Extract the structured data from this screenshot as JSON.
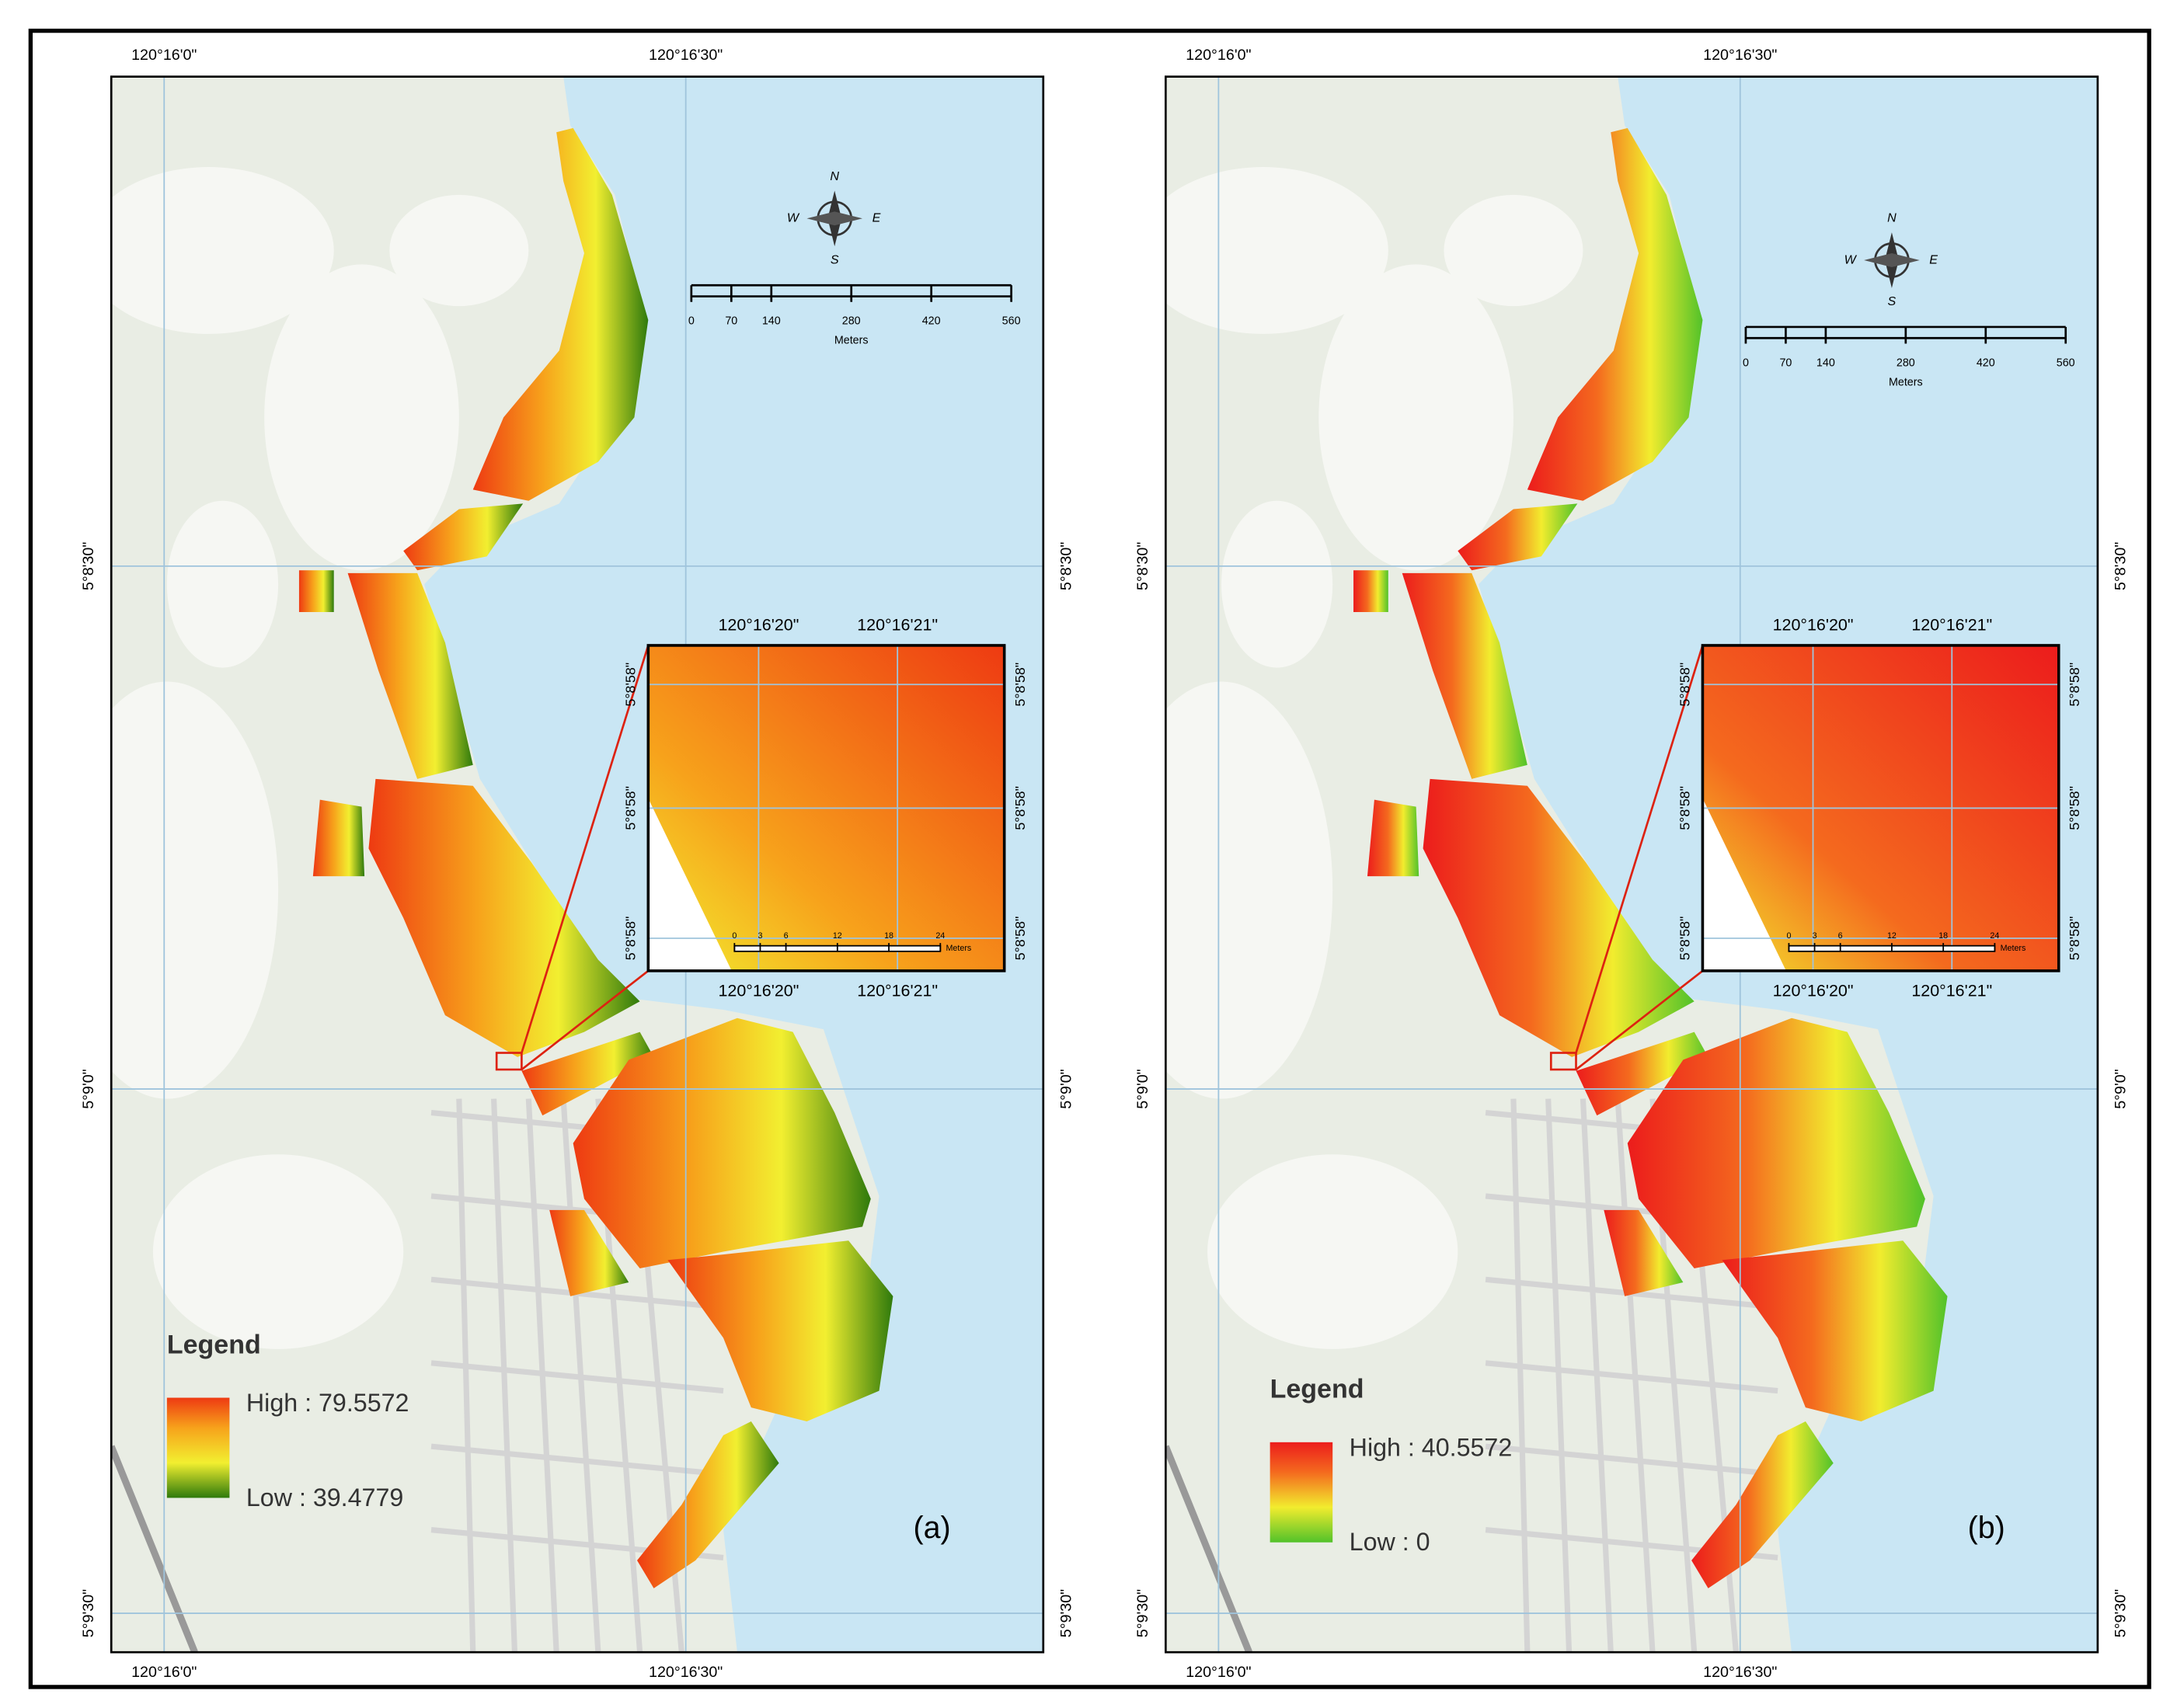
{
  "panels": [
    {
      "label": "(a)",
      "top_labels": [
        "120°16'0\"",
        "120°16'30\""
      ],
      "bottom_labels": [
        "120°16'0\"",
        "120°16'30\""
      ],
      "left_labels": [
        "5°8'30\"",
        "5°9'0\"",
        "5°9'30\""
      ],
      "right_labels": [
        "5°8'30\"",
        "5°9'0\"",
        "5°9'30\""
      ],
      "compass": [
        "N",
        "E",
        "S",
        "W"
      ],
      "scale": {
        "ticks": [
          0,
          70,
          140,
          280,
          420,
          560
        ],
        "unit": "Meters"
      },
      "inset": {
        "top_labels": [
          "120°16'20\"",
          "120°16'21\""
        ],
        "bottom_labels": [
          "120°16'20\"",
          "120°16'21\""
        ],
        "left_labels": [
          "5°8'58\"",
          "5°8'58\"",
          "5°8'58\""
        ],
        "right_labels": [
          "5°8'58\"",
          "5°8'58\"",
          "5°8'58\""
        ],
        "scale": {
          "ticks": [
            0,
            3,
            6,
            12,
            18,
            24
          ],
          "unit": "Meters"
        }
      },
      "legend": {
        "title": "Legend",
        "high": "High : 79.5572",
        "low": "Low : 39.4779",
        "colors": [
          "#ee3a12",
          "#f7a21b",
          "#f2ef30",
          "#2f7a0c"
        ]
      }
    },
    {
      "label": "(b)",
      "top_labels": [
        "120°16'0\"",
        "120°16'30\""
      ],
      "bottom_labels": [
        "120°16'0\"",
        "120°16'30\""
      ],
      "left_labels": [
        "5°8'30\"",
        "5°9'0\"",
        "5°9'30\""
      ],
      "right_labels": [
        "5°8'30\"",
        "5°9'0\"",
        "5°9'30\""
      ],
      "compass": [
        "N",
        "E",
        "S",
        "W"
      ],
      "scale": {
        "ticks": [
          0,
          70,
          140,
          280,
          420,
          560
        ],
        "unit": "Meters"
      },
      "inset": {
        "top_labels": [
          "120°16'20\"",
          "120°16'21\""
        ],
        "bottom_labels": [
          "120°16'20\"",
          "120°16'21\""
        ],
        "left_labels": [
          "5°8'58\"",
          "5°8'58\"",
          "5°8'58\""
        ],
        "right_labels": [
          "5°8'58\"",
          "5°8'58\"",
          "5°8'58\""
        ],
        "scale": {
          "ticks": [
            0,
            3,
            6,
            12,
            18,
            24
          ],
          "unit": "Meters"
        }
      },
      "legend": {
        "title": "Legend",
        "high": "High : 40.5572",
        "low": "Low : 0",
        "colors": [
          "#ec1c1c",
          "#f46a1e",
          "#f2ec2e",
          "#52c22a"
        ]
      }
    }
  ]
}
